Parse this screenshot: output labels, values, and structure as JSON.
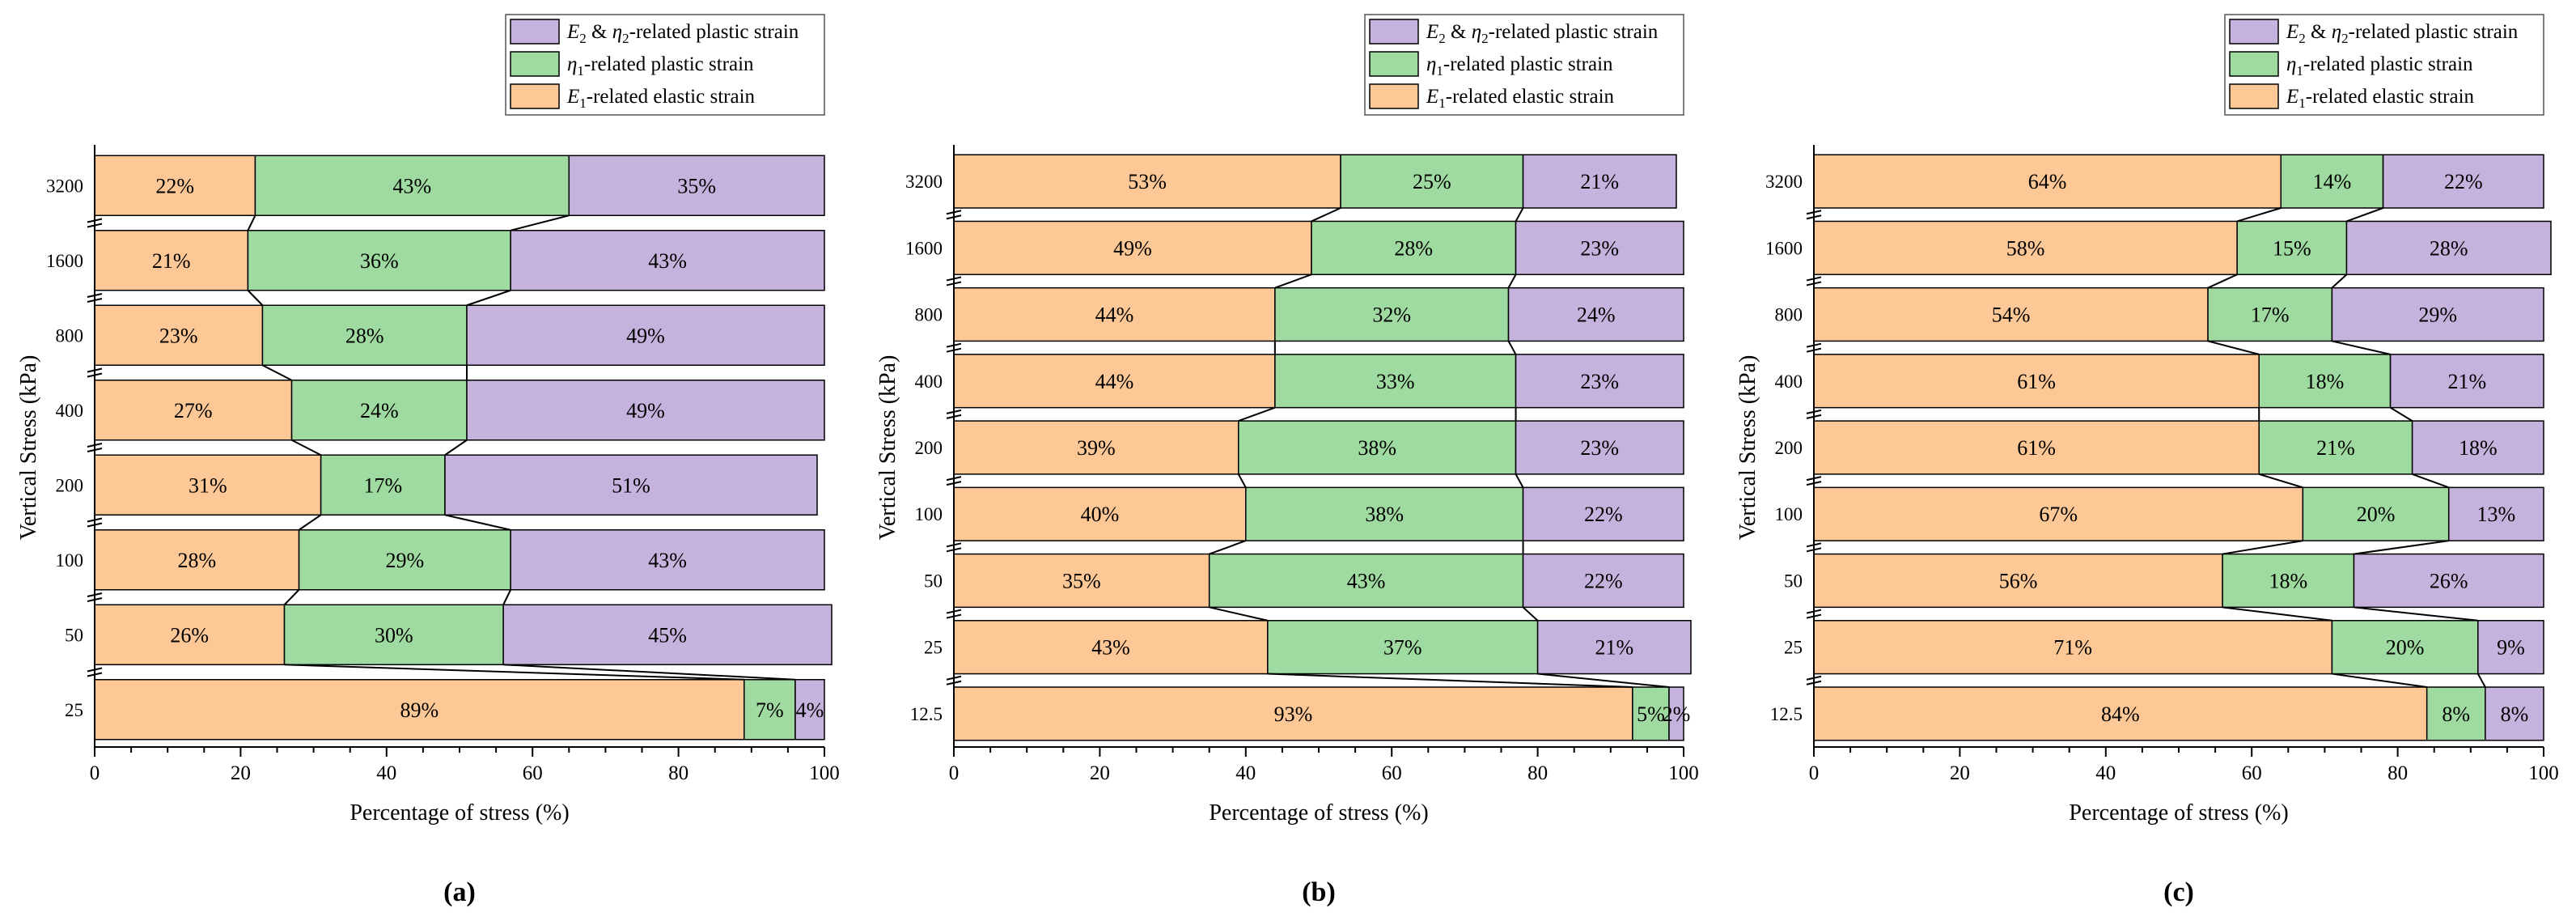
{
  "legend": [
    {
      "symbol": "E",
      "sub": "2",
      "mid": " & ",
      "symbol2": "η",
      "sub2": "2",
      "text": "-related plastic strain",
      "color": "#c5b3dd"
    },
    {
      "symbol": "η",
      "sub": "1",
      "text": "-related plastic strain",
      "color": "#9fdaa0"
    },
    {
      "symbol": "E",
      "sub": "1",
      "text": "-related elastic strain",
      "color": "#fdc896"
    }
  ],
  "chart_data": [
    {
      "type": "bar",
      "stacked": true,
      "orientation": "horizontal",
      "panel_label": "(a)",
      "xlabel": "Percentage of stress (%)",
      "ylabel": "Vertical Stress (kPa)",
      "xlim": [
        0,
        100
      ],
      "xticks": [
        "0",
        "20",
        "40",
        "60",
        "80",
        "100"
      ],
      "categories": [
        "25",
        "50",
        "100",
        "200",
        "400",
        "800",
        "1600",
        "3200"
      ],
      "series": [
        {
          "name": "E1-related elastic strain",
          "color": "#fdc896",
          "values": [
            89,
            26,
            28,
            31,
            27,
            23,
            21,
            22
          ]
        },
        {
          "name": "η1-related plastic strain",
          "color": "#9fdaa0",
          "values": [
            7,
            30,
            29,
            17,
            24,
            28,
            36,
            43
          ]
        },
        {
          "name": "E2 & η2-related plastic strain",
          "color": "#c5b3dd",
          "values": [
            4,
            45,
            43,
            51,
            49,
            49,
            43,
            35
          ]
        }
      ]
    },
    {
      "type": "bar",
      "stacked": true,
      "orientation": "horizontal",
      "panel_label": "(b)",
      "xlabel": "Percentage of stress (%)",
      "ylabel": "Vertical Stress (kPa)",
      "xlim": [
        0,
        100
      ],
      "xticks": [
        "0",
        "20",
        "40",
        "60",
        "80",
        "100"
      ],
      "categories": [
        "12.5",
        "25",
        "50",
        "100",
        "200",
        "400",
        "800",
        "1600",
        "3200"
      ],
      "series": [
        {
          "name": "E1-related elastic strain",
          "color": "#fdc896",
          "values": [
            93,
            43,
            35,
            40,
            39,
            44,
            44,
            49,
            53
          ]
        },
        {
          "name": "η1-related plastic strain",
          "color": "#9fdaa0",
          "values": [
            5,
            37,
            43,
            38,
            38,
            33,
            32,
            28,
            25
          ]
        },
        {
          "name": "E2 & η2-related plastic strain",
          "color": "#c5b3dd",
          "values": [
            2,
            21,
            22,
            22,
            23,
            23,
            24,
            23,
            21
          ]
        }
      ]
    },
    {
      "type": "bar",
      "stacked": true,
      "orientation": "horizontal",
      "panel_label": "(c)",
      "xlabel": "Percentage of stress (%)",
      "ylabel": "Vertical Stress (kPa)",
      "xlim": [
        0,
        100
      ],
      "xticks": [
        "0",
        "20",
        "40",
        "60",
        "80",
        "100"
      ],
      "categories": [
        "12.5",
        "25",
        "50",
        "100",
        "200",
        "400",
        "800",
        "1600",
        "3200"
      ],
      "series": [
        {
          "name": "E1-related elastic strain",
          "color": "#fdc896",
          "values": [
            84,
            71,
            56,
            67,
            61,
            61,
            54,
            58,
            64
          ]
        },
        {
          "name": "η1-related plastic strain",
          "color": "#9fdaa0",
          "values": [
            8,
            20,
            18,
            20,
            21,
            18,
            17,
            15,
            14
          ]
        },
        {
          "name": "E2 & η2-related plastic strain",
          "color": "#c5b3dd",
          "values": [
            8,
            9,
            26,
            13,
            18,
            21,
            29,
            28,
            22
          ]
        }
      ]
    }
  ]
}
